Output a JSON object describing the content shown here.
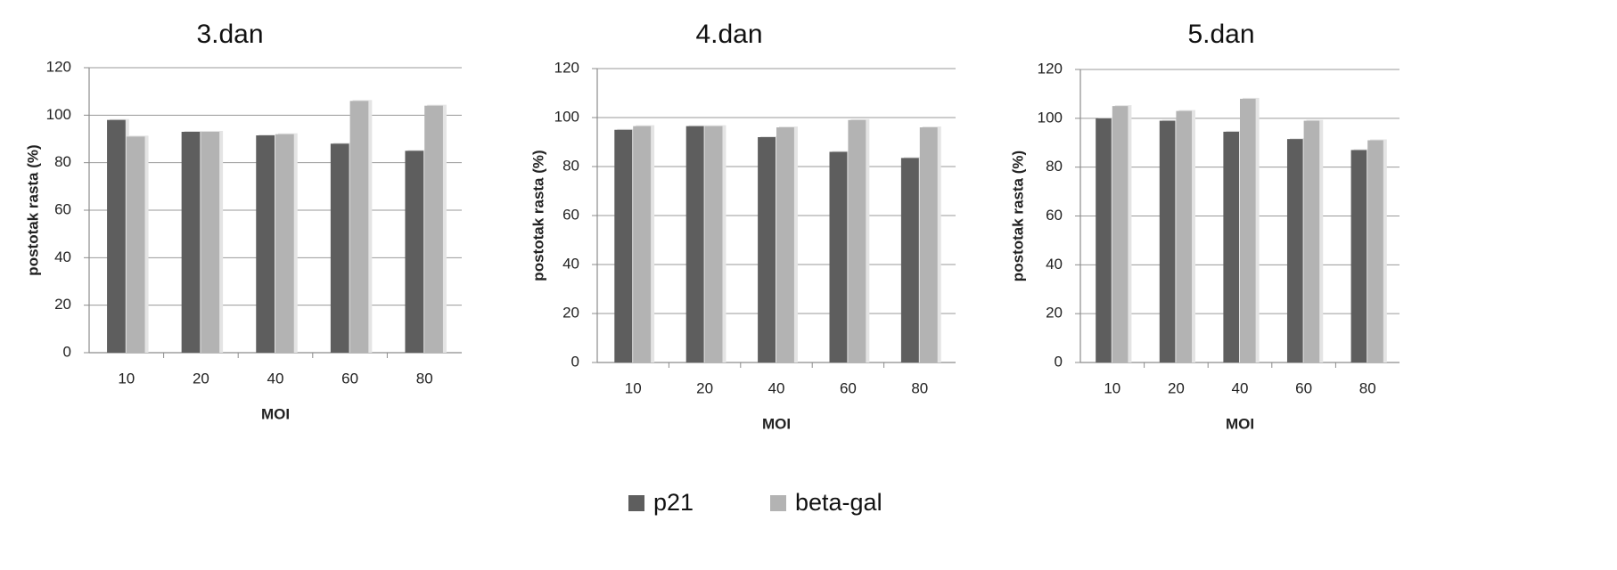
{
  "colors": {
    "p21": "#5e5e5e",
    "beta-gal": "#b3b3b3",
    "grid": "#9a9a9a",
    "axis": "#8c8c8c"
  },
  "legend": {
    "items": [
      {
        "label": "p21"
      },
      {
        "label": "beta-gal"
      }
    ],
    "placement": "bottom-center"
  },
  "chart_data": [
    {
      "type": "bar",
      "title": "3.dan",
      "xlabel": "MOI",
      "ylabel": "postotak rasta (%)",
      "categories": [
        "10",
        "20",
        "40",
        "60",
        "80"
      ],
      "series": [
        {
          "name": "p21",
          "values": [
            98,
            93,
            91.5,
            88,
            85
          ]
        },
        {
          "name": "beta-gal",
          "values": [
            91,
            93,
            92,
            106,
            104
          ]
        }
      ],
      "yticks": [
        "0",
        "20",
        "40",
        "60",
        "80",
        "100",
        "120"
      ],
      "ylim": [
        0,
        120
      ],
      "grid": true
    },
    {
      "type": "bar",
      "title": "4.dan",
      "xlabel": "MOI",
      "ylabel": "postotak rasta (%)",
      "categories": [
        "10",
        "20",
        "40",
        "60",
        "80"
      ],
      "series": [
        {
          "name": "p21",
          "values": [
            95,
            96.5,
            92,
            86,
            83.5
          ]
        },
        {
          "name": "beta-gal",
          "values": [
            96.5,
            96.5,
            96,
            99,
            96
          ]
        }
      ],
      "yticks": [
        "0",
        "20",
        "40",
        "60",
        "80",
        "100",
        "120"
      ],
      "ylim": [
        0,
        120
      ],
      "grid": true
    },
    {
      "type": "bar",
      "title": "5.dan",
      "xlabel": "MOI",
      "ylabel": "postotak rasta (%)",
      "categories": [
        "10",
        "20",
        "40",
        "60",
        "80"
      ],
      "series": [
        {
          "name": "p21",
          "values": [
            100,
            99,
            94.5,
            91.5,
            87
          ]
        },
        {
          "name": "beta-gal",
          "values": [
            105,
            103,
            108,
            99,
            91
          ]
        }
      ],
      "yticks": [
        "0",
        "20",
        "40",
        "60",
        "80",
        "100",
        "120"
      ],
      "ylim": [
        0,
        120
      ],
      "grid": true
    }
  ]
}
